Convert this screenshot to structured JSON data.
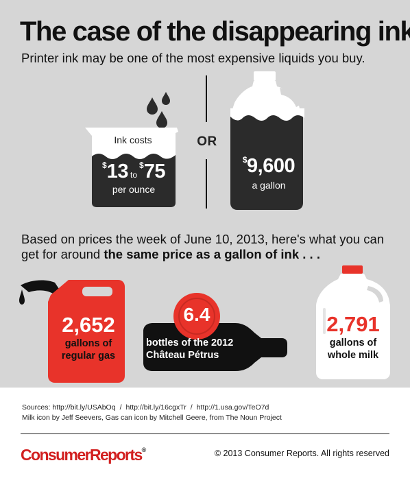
{
  "header": {
    "title": "The case of the disappearing ink",
    "subtitle": "Printer ink may be one of the most expensive liquids you buy."
  },
  "comparison": {
    "ink": {
      "caption": "Ink costs",
      "low": "13",
      "to": "to",
      "high": "75",
      "unit": "per ounce",
      "currency": "$"
    },
    "or": "OR",
    "gallon": {
      "currency": "$",
      "price": "9,600",
      "unit": "a gallon"
    }
  },
  "based": {
    "text": "Based on prices the week of June 10, 2013, here's what you can get for around ",
    "emphasis": "the same price as a gallon of ink . . ."
  },
  "items": {
    "gas": {
      "value": "2,652",
      "label_line1": "gallons of",
      "label_line2": "regular gas"
    },
    "wine": {
      "value": "6.4",
      "label_line1": "bottles of the 2012",
      "label_line2": "Château Pétrus"
    },
    "milk": {
      "value": "2,791",
      "label_line1": "gallons of",
      "label_line2": "whole milk"
    }
  },
  "footer": {
    "sources_label": "Sources: http://bit.ly/USAbOq",
    "source2": "http://bit.ly/16cgxTr",
    "source3": "http://1.usa.gov/TeO7d",
    "separator": "/",
    "credits": "Milk icon by Jeff Seevers, Gas can icon by Mitchell Geere, from The Noun Project",
    "logo": "ConsumerReports",
    "logo_mark": "®",
    "copyright": "© 2013 Consumer Reports. All rights reserved"
  },
  "colors": {
    "background": "#d6d6d6",
    "red": "#e8332a",
    "dark": "#2b2b2b",
    "brand": "#d22020"
  }
}
